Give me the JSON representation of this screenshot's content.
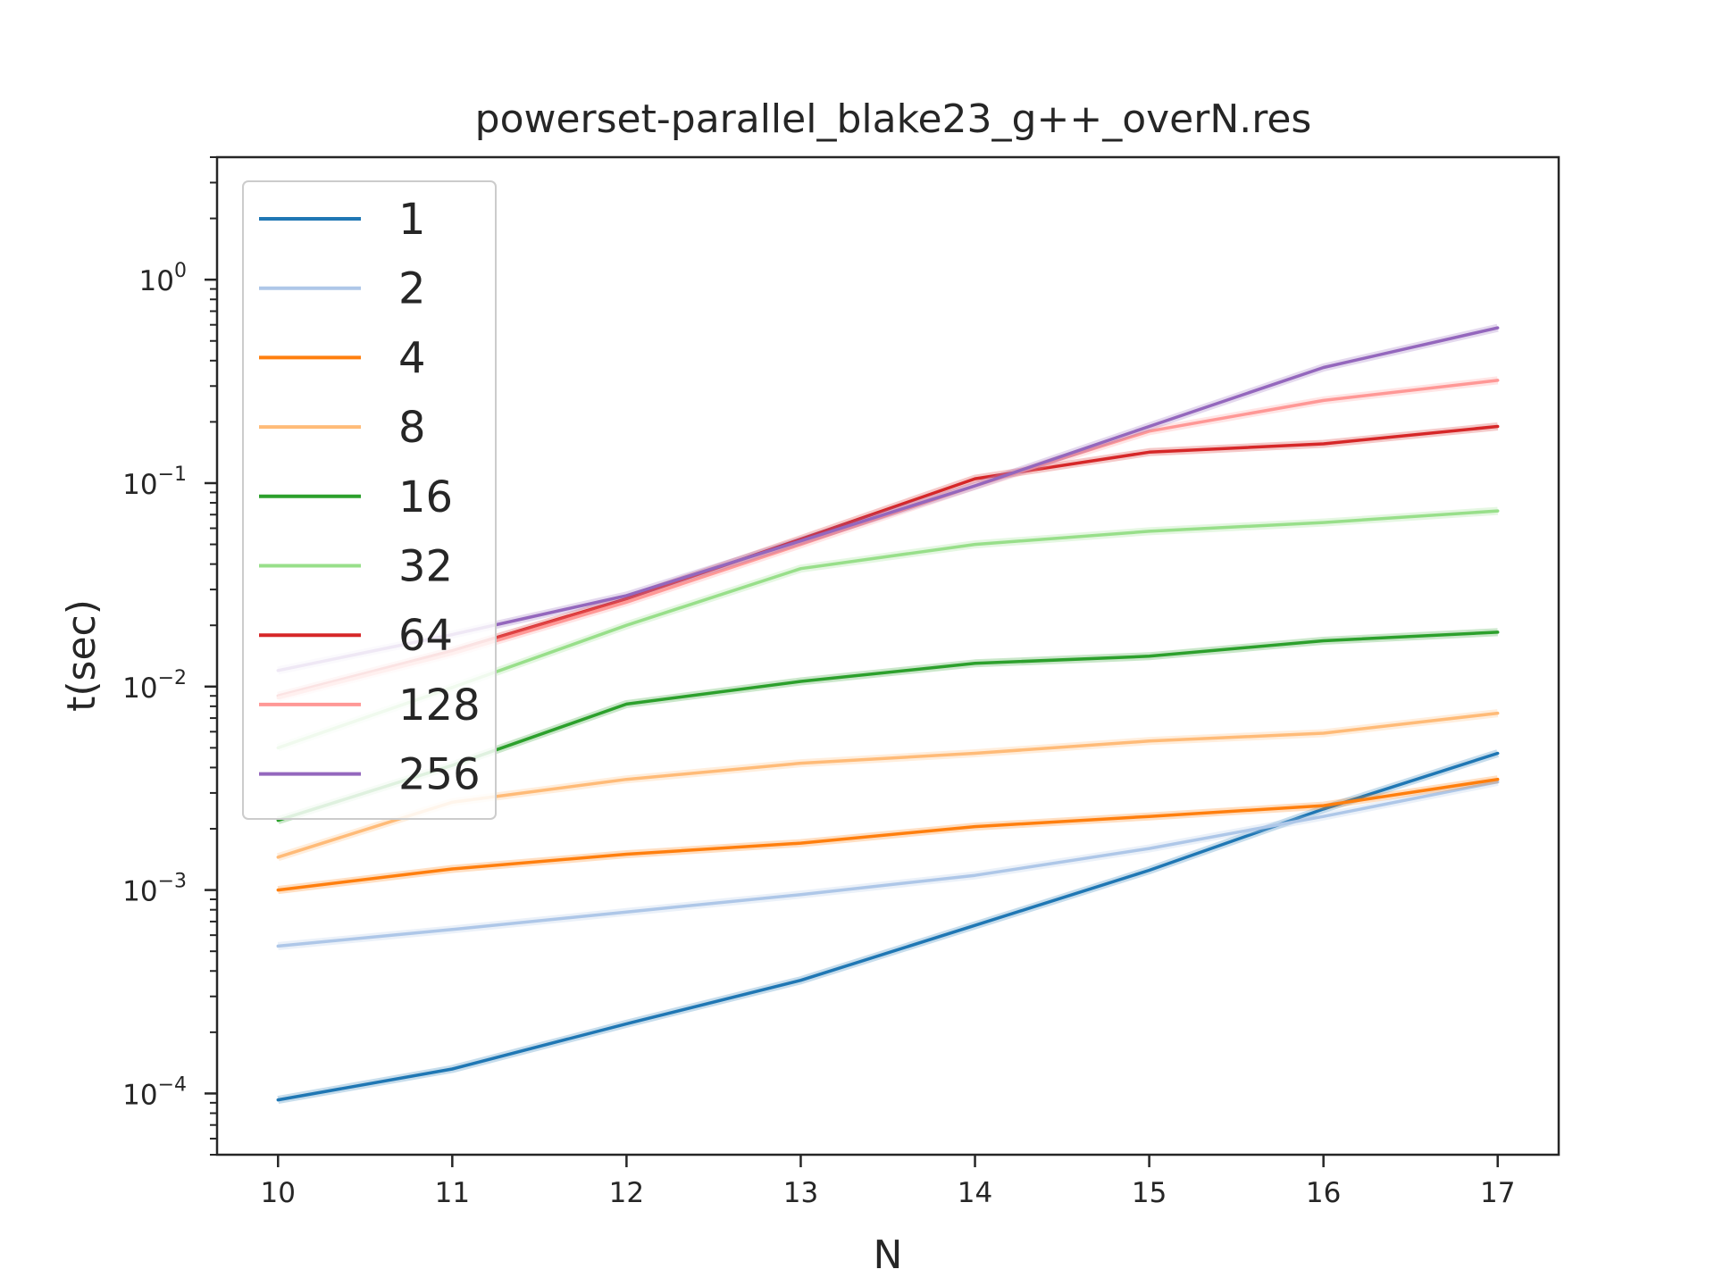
{
  "chart_data": {
    "type": "line",
    "title": "powerset-parallel_blake23_g++_overN.res",
    "xlabel": "N",
    "ylabel": "t(sec)",
    "yscale": "log",
    "xlim": [
      9.65,
      17.35
    ],
    "ylim": [
      5e-05,
      4.0
    ],
    "legend_position": "top-left",
    "x": [
      10,
      11,
      12,
      13,
      14,
      15,
      16,
      17
    ],
    "x_ticks": [
      "10",
      "11",
      "12",
      "13",
      "14",
      "15",
      "16",
      "17"
    ],
    "y_ticks": [
      {
        "value": 0.0001,
        "base": "10",
        "exp": "−4"
      },
      {
        "value": 0.001,
        "base": "10",
        "exp": "−3"
      },
      {
        "value": 0.01,
        "base": "10",
        "exp": "−2"
      },
      {
        "value": 0.1,
        "base": "10",
        "exp": "−1"
      },
      {
        "value": 1,
        "base": "10",
        "exp": "0"
      }
    ],
    "series": [
      {
        "name": "1",
        "color": "#1f77b4",
        "values": [
          9.3e-05,
          0.000132,
          0.00022,
          0.00036,
          0.00067,
          0.00125,
          0.0025,
          0.0047
        ]
      },
      {
        "name": "2",
        "color": "#aec7e8",
        "values": [
          0.00053,
          0.00064,
          0.00078,
          0.00095,
          0.00118,
          0.0016,
          0.0023,
          0.0034
        ]
      },
      {
        "name": "4",
        "color": "#ff7f0e",
        "values": [
          0.001,
          0.00127,
          0.0015,
          0.0017,
          0.00205,
          0.0023,
          0.0026,
          0.0035
        ]
      },
      {
        "name": "8",
        "color": "#ffbb78",
        "values": [
          0.00145,
          0.0027,
          0.0035,
          0.0042,
          0.0047,
          0.0054,
          0.0059,
          0.0074
        ]
      },
      {
        "name": "16",
        "color": "#2ca02c",
        "values": [
          0.0022,
          0.0041,
          0.0082,
          0.0106,
          0.013,
          0.0141,
          0.0168,
          0.0185
        ]
      },
      {
        "name": "32",
        "color": "#98df8a",
        "values": [
          0.005,
          0.0099,
          0.02,
          0.038,
          0.05,
          0.058,
          0.064,
          0.073
        ]
      },
      {
        "name": "64",
        "color": "#d62728",
        "values": [
          0.009,
          0.015,
          0.027,
          0.053,
          0.105,
          0.142,
          0.156,
          0.19
        ]
      },
      {
        "name": "128",
        "color": "#ff9896",
        "values": [
          0.0088,
          0.0145,
          0.026,
          0.05,
          0.097,
          0.18,
          0.255,
          0.32
        ]
      },
      {
        "name": "256",
        "color": "#9467bd",
        "values": [
          0.012,
          0.018,
          0.028,
          0.052,
          0.097,
          0.19,
          0.37,
          0.58
        ]
      }
    ]
  }
}
